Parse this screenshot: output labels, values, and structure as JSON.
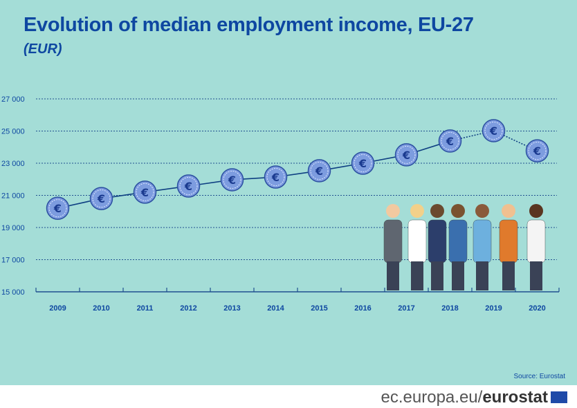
{
  "title": "Evolution of median employment income, EU-27",
  "subtitle": "(EUR)",
  "source": "Source: Eurostat",
  "footer": {
    "domain": "ec.europa.eu/",
    "brand": "eurostat"
  },
  "colors": {
    "background": "#a4ddd7",
    "line": "#0e3f82",
    "marker": "#7d9cdf",
    "text": "#0e47a1"
  },
  "chart_data": {
    "type": "line",
    "title": "Evolution of median employment income, EU-27",
    "subtitle": "(EUR)",
    "categories": [
      "2009",
      "2010",
      "2011",
      "2012",
      "2013",
      "2014",
      "2015",
      "2016",
      "2017",
      "2018",
      "2019",
      "2020"
    ],
    "values": [
      20200,
      20800,
      21200,
      21580,
      21970,
      22140,
      22530,
      23000,
      23520,
      24380,
      25020,
      23770
    ],
    "dotted_segments_from": "2018",
    "marker": "euro-coin",
    "ylim": [
      15000,
      27000
    ],
    "yticks": [
      "15 000",
      "17 000",
      "19 000",
      "21 000",
      "23 000",
      "25 000",
      "27 000"
    ],
    "ytick_values": [
      15000,
      17000,
      19000,
      21000,
      23000,
      25000,
      27000
    ],
    "grid": "horizontal dotted",
    "legend": "none"
  }
}
